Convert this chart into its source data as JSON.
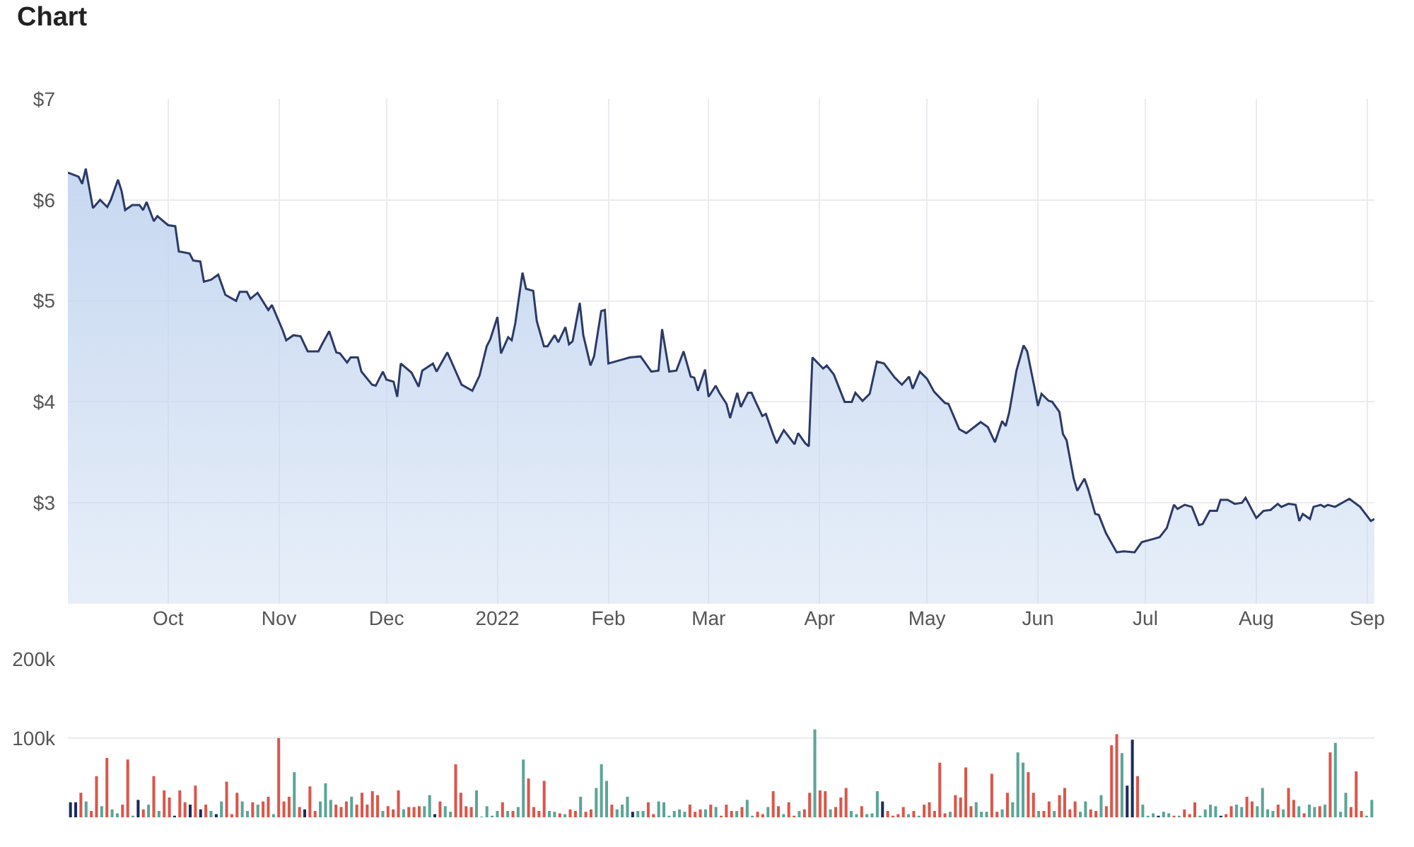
{
  "chart_data": [
    {
      "type": "area",
      "title": "Chart",
      "x": [
        "2021-09-03",
        "2021-09-06",
        "2021-09-07",
        "2021-09-08",
        "2021-09-10",
        "2021-09-12",
        "2021-09-14",
        "2021-09-15",
        "2021-09-17",
        "2021-09-18",
        "2021-09-19",
        "2021-09-21",
        "2021-09-23",
        "2021-09-24",
        "2021-09-25",
        "2021-09-27",
        "2021-09-28",
        "2021-10-01",
        "2021-10-03",
        "2021-10-04",
        "2021-10-07",
        "2021-10-08",
        "2021-10-10",
        "2021-10-11",
        "2021-10-13",
        "2021-10-15",
        "2021-10-17",
        "2021-10-20",
        "2021-10-21",
        "2021-10-23",
        "2021-10-24",
        "2021-10-26",
        "2021-10-29",
        "2021-10-30",
        "2021-11-02",
        "2021-11-03",
        "2021-11-05",
        "2021-11-07",
        "2021-11-09",
        "2021-11-12",
        "2021-11-13",
        "2021-11-15",
        "2021-11-17",
        "2021-11-18",
        "2021-11-20",
        "2021-11-21",
        "2021-11-23",
        "2021-11-24",
        "2021-11-27",
        "2021-11-28",
        "2021-11-30",
        "2021-12-01",
        "2021-12-03",
        "2021-12-04",
        "2021-12-05",
        "2021-12-08",
        "2021-12-10",
        "2021-12-11",
        "2021-12-14",
        "2021-12-15",
        "2021-12-18",
        "2021-12-22",
        "2021-12-25",
        "2021-12-27",
        "2021-12-29",
        "2021-12-30",
        "2022-01-01",
        "2022-01-02",
        "2022-01-04",
        "2022-01-05",
        "2022-01-06",
        "2022-01-08",
        "2022-01-09",
        "2022-01-11",
        "2022-01-12",
        "2022-01-14",
        "2022-01-15",
        "2022-01-17",
        "2022-01-18",
        "2022-01-20",
        "2022-01-21",
        "2022-01-22",
        "2022-01-24",
        "2022-01-25",
        "2022-01-27",
        "2022-01-28",
        "2022-01-30",
        "2022-01-31",
        "2022-02-01",
        "2022-02-05",
        "2022-02-07",
        "2022-02-10",
        "2022-02-13",
        "2022-02-15",
        "2022-02-16",
        "2022-02-18",
        "2022-02-20",
        "2022-02-22",
        "2022-02-24",
        "2022-02-25",
        "2022-02-26",
        "2022-02-28",
        "2022-03-01",
        "2022-03-03",
        "2022-03-04",
        "2022-03-06",
        "2022-03-07",
        "2022-03-09",
        "2022-03-10",
        "2022-03-12",
        "2022-03-13",
        "2022-03-14",
        "2022-03-16",
        "2022-03-17",
        "2022-03-19",
        "2022-03-20",
        "2022-03-22",
        "2022-03-25",
        "2022-03-26",
        "2022-03-28",
        "2022-03-29",
        "2022-03-30",
        "2022-04-02",
        "2022-04-03",
        "2022-04-05",
        "2022-04-08",
        "2022-04-10",
        "2022-04-11",
        "2022-04-13",
        "2022-04-15",
        "2022-04-17",
        "2022-04-19",
        "2022-04-22",
        "2022-04-24",
        "2022-04-26",
        "2022-04-27",
        "2022-04-29",
        "2022-05-01",
        "2022-05-03",
        "2022-05-06",
        "2022-05-07",
        "2022-05-10",
        "2022-05-12",
        "2022-05-16",
        "2022-05-18",
        "2022-05-20",
        "2022-05-22",
        "2022-05-23",
        "2022-05-24",
        "2022-05-26",
        "2022-05-28",
        "2022-05-29",
        "2022-05-31",
        "2022-06-01",
        "2022-06-02",
        "2022-06-04",
        "2022-06-05",
        "2022-06-07",
        "2022-06-08",
        "2022-06-09",
        "2022-06-11",
        "2022-06-12",
        "2022-06-14",
        "2022-06-15",
        "2022-06-17",
        "2022-06-18",
        "2022-06-20",
        "2022-06-23",
        "2022-06-25",
        "2022-06-28",
        "2022-06-30",
        "2022-07-03",
        "2022-07-05",
        "2022-07-07",
        "2022-07-09",
        "2022-07-10",
        "2022-07-12",
        "2022-07-14",
        "2022-07-16",
        "2022-07-17",
        "2022-07-19",
        "2022-07-21",
        "2022-07-22",
        "2022-07-24",
        "2022-07-26",
        "2022-07-28",
        "2022-07-29",
        "2022-08-01",
        "2022-08-03",
        "2022-08-05",
        "2022-08-07",
        "2022-08-08",
        "2022-08-10",
        "2022-08-12",
        "2022-08-13",
        "2022-08-14",
        "2022-08-16",
        "2022-08-17",
        "2022-08-19",
        "2022-08-20",
        "2022-08-21",
        "2022-08-23",
        "2022-08-27",
        "2022-08-30",
        "2022-09-02",
        "2022-09-03"
      ],
      "series": [
        {
          "color": "#2b3a67",
          "values": [
            6.27,
            6.23,
            6.16,
            6.31,
            5.92,
            6.0,
            5.93,
            6.0,
            6.2,
            6.09,
            5.9,
            5.95,
            5.95,
            5.9,
            5.98,
            5.79,
            5.84,
            5.75,
            5.74,
            5.49,
            5.47,
            5.4,
            5.39,
            5.19,
            5.21,
            5.26,
            5.06,
            5.0,
            5.09,
            5.09,
            5.02,
            5.08,
            4.91,
            4.96,
            4.71,
            4.61,
            4.66,
            4.65,
            4.5,
            4.5,
            4.57,
            4.7,
            4.49,
            4.48,
            4.39,
            4.44,
            4.44,
            4.3,
            4.17,
            4.16,
            4.3,
            4.22,
            4.2,
            4.05,
            4.38,
            4.29,
            4.15,
            4.31,
            4.38,
            4.3,
            4.49,
            4.17,
            4.11,
            4.26,
            4.55,
            4.62,
            4.84,
            4.48,
            4.64,
            4.61,
            4.78,
            5.28,
            5.12,
            5.1,
            4.8,
            4.55,
            4.55,
            4.66,
            4.59,
            4.74,
            4.57,
            4.6,
            4.98,
            4.66,
            4.36,
            4.45,
            4.9,
            4.91,
            4.38,
            4.42,
            4.44,
            4.45,
            4.3,
            4.31,
            4.72,
            4.3,
            4.31,
            4.5,
            4.25,
            4.24,
            4.11,
            4.32,
            4.05,
            4.16,
            4.09,
            3.98,
            3.84,
            4.09,
            3.95,
            4.09,
            4.09,
            4.01,
            3.86,
            3.88,
            3.68,
            3.59,
            3.72,
            3.58,
            3.69,
            3.59,
            3.56,
            4.44,
            4.33,
            4.36,
            4.27,
            4.0,
            4.0,
            4.09,
            4.01,
            4.08,
            4.4,
            4.38,
            4.24,
            4.17,
            4.25,
            4.13,
            4.3,
            4.23,
            4.1,
            3.99,
            3.98,
            3.73,
            3.69,
            3.8,
            3.75,
            3.6,
            3.81,
            3.76,
            3.9,
            4.31,
            4.56,
            4.5,
            4.15,
            3.96,
            4.08,
            4.01,
            4.0,
            3.9,
            3.68,
            3.62,
            3.24,
            3.12,
            3.24,
            3.14,
            2.89,
            2.88,
            2.7,
            2.51,
            2.52,
            2.51,
            2.61,
            2.64,
            2.66,
            2.75,
            2.98,
            2.94,
            2.98,
            2.96,
            2.78,
            2.79,
            2.92,
            2.92,
            3.03,
            3.03,
            2.99,
            3.0,
            3.05,
            2.85,
            2.92,
            2.93,
            2.99,
            2.96,
            2.99,
            2.98,
            2.82,
            2.89,
            2.84,
            2.96,
            2.98,
            2.96,
            2.98,
            2.96,
            3.04,
            2.96,
            2.82,
            2.84
          ]
        }
      ],
      "xlim": [
        "2021-09-03",
        "2022-09-03"
      ],
      "xticks": [
        {
          "value": "2021-10-01",
          "label": "Oct"
        },
        {
          "value": "2021-11-01",
          "label": "Nov"
        },
        {
          "value": "2021-12-01",
          "label": "Dec"
        },
        {
          "value": "2022-01-01",
          "label": "2022"
        },
        {
          "value": "2022-02-01",
          "label": "Feb"
        },
        {
          "value": "2022-03-01",
          "label": "Mar"
        },
        {
          "value": "2022-04-01",
          "label": "Apr"
        },
        {
          "value": "2022-05-01",
          "label": "May"
        },
        {
          "value": "2022-06-01",
          "label": "Jun"
        },
        {
          "value": "2022-07-01",
          "label": "Jul"
        },
        {
          "value": "2022-08-01",
          "label": "Aug"
        },
        {
          "value": "2022-09-01",
          "label": "Sep"
        }
      ],
      "ylim": [
        2,
        7
      ],
      "yticks": [
        {
          "value": 3,
          "label": "$3"
        },
        {
          "value": 4,
          "label": "$4"
        },
        {
          "value": 5,
          "label": "$5"
        },
        {
          "value": 6,
          "label": "$6"
        },
        {
          "value": 7,
          "label": "$7"
        }
      ],
      "grid": true,
      "marker": "none",
      "line_style": "solid"
    },
    {
      "type": "bar",
      "categories": [
        null,
        null,
        null,
        null,
        null,
        null,
        null,
        null,
        null,
        null,
        null,
        null,
        null,
        null,
        null,
        null,
        null,
        null,
        null,
        null,
        null,
        null,
        null,
        null,
        null,
        null,
        null,
        null,
        null,
        null,
        null,
        null,
        null,
        null,
        null,
        null,
        null,
        null,
        null,
        null,
        null,
        null,
        null,
        null,
        null,
        null,
        null,
        null,
        null,
        null,
        null,
        null,
        null,
        null,
        null,
        null,
        null,
        null,
        null,
        null,
        null,
        null,
        null,
        null,
        null,
        null,
        null,
        null,
        null,
        null,
        null,
        null,
        null,
        null,
        null,
        null,
        null,
        null,
        null,
        null,
        null,
        null,
        null,
        null,
        null,
        null,
        null,
        null,
        null,
        null,
        null,
        null,
        null,
        null,
        null,
        null,
        null,
        null,
        null,
        null,
        null,
        null,
        null,
        null,
        null,
        null,
        null,
        null,
        null,
        null,
        null,
        null,
        null,
        null,
        null,
        null,
        null,
        null,
        null,
        null,
        null,
        null,
        null,
        null,
        null,
        null,
        null,
        null,
        null,
        null,
        null,
        null,
        null,
        null,
        null,
        null,
        null,
        null,
        null,
        null,
        null,
        null,
        null,
        null,
        null,
        null,
        null,
        null,
        null,
        null,
        null,
        null,
        null,
        null,
        null,
        null,
        null,
        null,
        null,
        null,
        null,
        null,
        null,
        null,
        null,
        null,
        null,
        null,
        null,
        null,
        null,
        null,
        null,
        null,
        null,
        null,
        null,
        null,
        null,
        null,
        null,
        null,
        null,
        null,
        null,
        null,
        null,
        null,
        null,
        null,
        null,
        null,
        null,
        null,
        null,
        null,
        null,
        null,
        null,
        null,
        null,
        null,
        null,
        null,
        null,
        null,
        null,
        null,
        null,
        null,
        null,
        null,
        null,
        null,
        null,
        null,
        null,
        null,
        null,
        null,
        null,
        null,
        null,
        null,
        null,
        null,
        null,
        null,
        null,
        null,
        null,
        null,
        null,
        null,
        null,
        null,
        null,
        null,
        null,
        null,
        null,
        null,
        null,
        null,
        null,
        null,
        null,
        null,
        null,
        null,
        null
      ],
      "values": [
        19000,
        19000,
        31000,
        20000,
        8000,
        52000,
        14000,
        75000,
        10000,
        5000,
        16000,
        73000,
        2000,
        22000,
        10000,
        16000,
        52000,
        8000,
        34000,
        25000,
        2000,
        34000,
        19000,
        16000,
        40000,
        10000,
        16000,
        8000,
        4000,
        20000,
        45000,
        4000,
        31000,
        20000,
        8000,
        19000,
        16000,
        20000,
        26000,
        4000,
        100000,
        20000,
        26000,
        57000,
        13000,
        10000,
        39000,
        8000,
        20000,
        43000,
        22000,
        16000,
        13000,
        20000,
        26000,
        16000,
        31000,
        16000,
        33000,
        28000,
        8000,
        14000,
        10000,
        34000,
        10000,
        13000,
        13000,
        14000,
        14000,
        28000,
        4000,
        20000,
        14000,
        7000,
        67000,
        31000,
        14000,
        13000,
        34000,
        1000,
        14000,
        2000,
        8000,
        19000,
        8000,
        8000,
        13000,
        73000,
        49000,
        13000,
        8000,
        46000,
        8000,
        7000,
        5000,
        4000,
        10000,
        8000,
        26000,
        7000,
        10000,
        37000,
        67000,
        46000,
        16000,
        10000,
        16000,
        26000,
        7000,
        8000,
        8000,
        19000,
        4000,
        20000,
        19000,
        2000,
        8000,
        10000,
        7000,
        16000,
        7000,
        10000,
        10000,
        16000,
        13000,
        2000,
        16000,
        8000,
        8000,
        13000,
        22000,
        2000,
        7000,
        4000,
        13000,
        33000,
        14000,
        4000,
        19000,
        2000,
        8000,
        10000,
        31000,
        111000,
        34000,
        33000,
        10000,
        13000,
        25000,
        37000,
        8000,
        4000,
        14000,
        4000,
        5000,
        33000,
        20000,
        8000,
        2000,
        4000,
        13000,
        4000,
        8000,
        2000,
        16000,
        19000,
        8000,
        69000,
        5000,
        7000,
        28000,
        25000,
        63000,
        14000,
        19000,
        7000,
        7000,
        55000,
        7000,
        10000,
        31000,
        19000,
        82000,
        69000,
        57000,
        31000,
        8000,
        8000,
        20000,
        8000,
        28000,
        37000,
        10000,
        20000,
        7000,
        20000,
        10000,
        8000,
        28000,
        14000,
        91000,
        105000,
        81000,
        40000,
        98000,
        52000,
        16000,
        2000,
        5000,
        2000,
        7000,
        5000,
        2000,
        2000,
        10000,
        4000,
        19000,
        2000,
        10000,
        16000,
        14000,
        2000,
        4000,
        14000,
        16000,
        13000,
        26000,
        20000,
        14000,
        37000,
        10000,
        8000,
        16000,
        10000,
        37000,
        22000,
        14000,
        5000,
        16000,
        13000,
        14000,
        16000,
        82000,
        94000,
        7000,
        31000,
        13000,
        58000,
        8000,
        2000,
        22000
      ],
      "colors": [
        "#1c2b5c",
        "#1c2b5c",
        "#d9574a",
        "#5ba597",
        "#d9574a",
        "#d9574a",
        "#5ba597",
        "#d9574a",
        "#5ba597",
        "#5ba597",
        "#d9574a",
        "#d9574a",
        "#5ba597",
        "#1c2b5c",
        "#d9574a",
        "#5ba597",
        "#d9574a",
        "#5ba597",
        "#d9574a",
        "#d9574a",
        "#1c2b5c",
        "#d9574a",
        "#d9574a",
        "#1c2b5c",
        "#d9574a",
        "#1c2b5c",
        "#d9574a",
        "#5ba597",
        "#1c2b5c",
        "#5ba597",
        "#d9574a",
        "#d9574a",
        "#d9574a",
        "#5ba597",
        "#5ba597",
        "#d9574a",
        "#5ba597",
        "#d9574a",
        "#d9574a",
        "#5ba597",
        "#d9574a",
        "#d9574a",
        "#d9574a",
        "#5ba597",
        "#d9574a",
        "#1c2b5c",
        "#d9574a",
        "#d9574a",
        "#5ba597",
        "#5ba597",
        "#5ba597",
        "#d9574a",
        "#d9574a",
        "#d9574a",
        "#5ba597",
        "#d9574a",
        "#d9574a",
        "#d9574a",
        "#d9574a",
        "#d9574a",
        "#5ba597",
        "#d9574a",
        "#d9574a",
        "#d9574a",
        "#5ba597",
        "#d9574a",
        "#d9574a",
        "#d9574a",
        "#5ba597",
        "#5ba597",
        "#1c2b5c",
        "#d9574a",
        "#5ba597",
        "#5ba597",
        "#d9574a",
        "#d9574a",
        "#d9574a",
        "#d9574a",
        "#5ba597",
        "#5ba597",
        "#5ba597",
        "#5ba597",
        "#5ba597",
        "#d9574a",
        "#5ba597",
        "#d9574a",
        "#5ba597",
        "#5ba597",
        "#d9574a",
        "#d9574a",
        "#d9574a",
        "#d9574a",
        "#5ba597",
        "#5ba597",
        "#d9574a",
        "#5ba597",
        "#d9574a",
        "#d9574a",
        "#5ba597",
        "#d9574a",
        "#d9574a",
        "#5ba597",
        "#5ba597",
        "#5ba597",
        "#d9574a",
        "#5ba597",
        "#5ba597",
        "#5ba597",
        "#1c2b5c",
        "#5ba597",
        "#5ba597",
        "#d9574a",
        "#d9574a",
        "#5ba597",
        "#5ba597",
        "#5ba597",
        "#5ba597",
        "#5ba597",
        "#5ba597",
        "#d9574a",
        "#d9574a",
        "#d9574a",
        "#5ba597",
        "#d9574a",
        "#5ba597",
        "#d9574a",
        "#d9574a",
        "#d9574a",
        "#5ba597",
        "#d9574a",
        "#5ba597",
        "#5ba597",
        "#d9574a",
        "#d9574a",
        "#5ba597",
        "#d9574a",
        "#d9574a",
        "#5ba597",
        "#d9574a",
        "#d9574a",
        "#5ba597",
        "#d9574a",
        "#d9574a",
        "#5ba597",
        "#d9574a",
        "#d9574a",
        "#5ba597",
        "#d9574a",
        "#d9574a",
        "#d9574a",
        "#5ba597",
        "#5ba597",
        "#d9574a",
        "#5ba597",
        "#5ba597",
        "#5ba597",
        "#1c2b5c",
        "#d9574a",
        "#d9574a",
        "#d9574a",
        "#d9574a",
        "#5ba597",
        "#d9574a",
        "#5ba597",
        "#d9574a",
        "#d9574a",
        "#d9574a",
        "#d9574a",
        "#d9574a",
        "#5ba597",
        "#d9574a",
        "#d9574a",
        "#d9574a",
        "#d9574a",
        "#5ba597",
        "#5ba597",
        "#5ba597",
        "#d9574a",
        "#d9574a",
        "#5ba597",
        "#d9574a",
        "#5ba597",
        "#5ba597",
        "#5ba597",
        "#d9574a",
        "#d9574a",
        "#5ba597",
        "#d9574a",
        "#d9574a",
        "#5ba597",
        "#d9574a",
        "#d9574a",
        "#d9574a",
        "#d9574a",
        "#5ba597",
        "#5ba597",
        "#d9574a",
        "#d9574a",
        "#5ba597",
        "#d9574a",
        "#d9574a",
        "#d9574a",
        "#5ba597",
        "#1c2b5c",
        "#1c2b5c",
        "#d9574a",
        "#5ba597",
        "#5ba597",
        "#5ba597",
        "#1c2b5c",
        "#5ba597",
        "#5ba597",
        "#d9574a",
        "#5ba597",
        "#d9574a",
        "#d9574a",
        "#d9574a",
        "#5ba597",
        "#5ba597",
        "#5ba597",
        "#5ba597",
        "#1c2b5c",
        "#d9574a",
        "#d9574a",
        "#5ba597",
        "#5ba597",
        "#d9574a",
        "#d9574a",
        "#5ba597",
        "#5ba597",
        "#5ba597",
        "#5ba597",
        "#d9574a",
        "#5ba597",
        "#d9574a",
        "#d9574a",
        "#5ba597",
        "#d9574a",
        "#5ba597",
        "#5ba597",
        "#d9574a",
        "#5ba597",
        "#d9574a",
        "#5ba597",
        "#5ba597",
        "#5ba597",
        "#d9574a",
        "#d9574a",
        "#d9574a",
        "#5ba597",
        "#5ba597"
      ],
      "ylim": [
        0,
        200000
      ],
      "yticks": [
        {
          "value": 100000,
          "label": "100k"
        },
        {
          "value": 200000,
          "label": "200k"
        }
      ],
      "grid": "y",
      "tick_labels": "y"
    }
  ]
}
